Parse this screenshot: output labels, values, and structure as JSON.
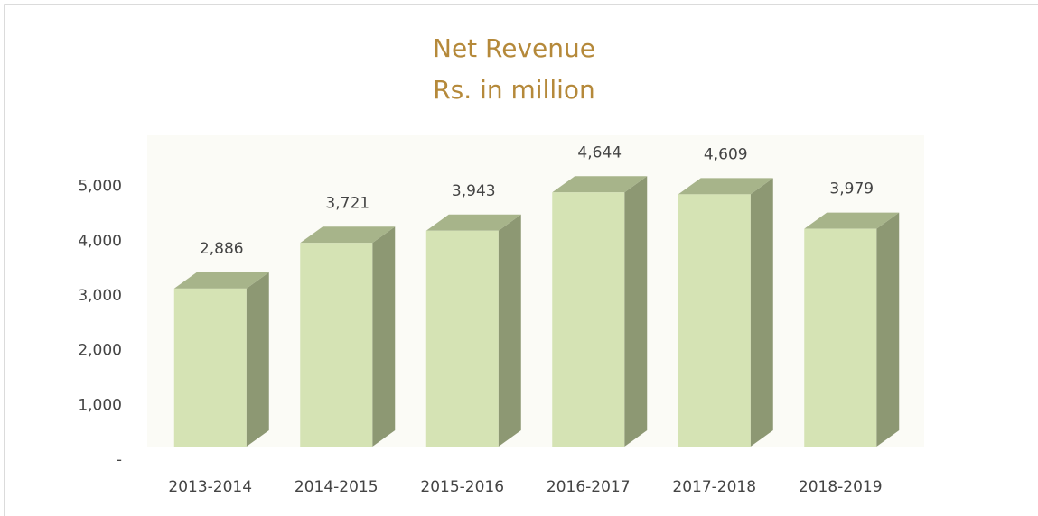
{
  "chart_data": {
    "type": "bar3d",
    "title": "Net Revenue",
    "subtitle": "Rs. in million",
    "categories": [
      "2013-2014",
      "2014-2015",
      "2015-2016",
      "2016-2017",
      "2017-2018",
      "2018-2019"
    ],
    "values": [
      2886,
      3721,
      3943,
      4644,
      4609,
      3979
    ],
    "value_labels": [
      "2,886",
      "3,721",
      "3,943",
      "4,644",
      "4,609",
      "3,979"
    ],
    "color": "#d5e3b4",
    "ylim": [
      0,
      6000
    ],
    "yticks": [
      {
        "value": 0,
        "label": "-"
      },
      {
        "value": 1000,
        "label": "1,000"
      },
      {
        "value": 2000,
        "label": "2,000"
      },
      {
        "value": 3000,
        "label": "3,000"
      },
      {
        "value": 4000,
        "label": "4,000"
      },
      {
        "value": 5000,
        "label": "5,000"
      }
    ]
  }
}
